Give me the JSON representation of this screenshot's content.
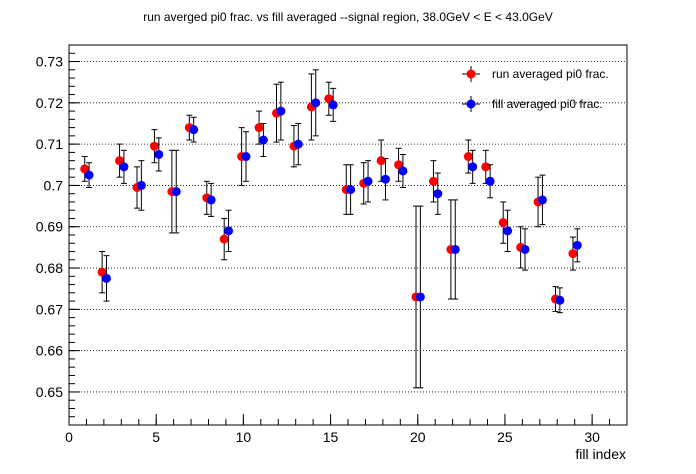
{
  "chart_data": {
    "type": "scatter",
    "title": "run averged pi0 frac. vs fill averaged --signal region, 38.0GeV < E < 43.0GeV",
    "xlabel": "fill index",
    "ylabel": "",
    "xlim": [
      0,
      32
    ],
    "ylim": [
      0.642,
      0.734
    ],
    "x_ticks": [
      0,
      5,
      10,
      15,
      20,
      25,
      30
    ],
    "y_ticks": [
      0.65,
      0.66,
      0.67,
      0.68,
      0.69,
      0.7,
      0.71,
      0.72,
      0.73
    ],
    "x_tick_labels": [
      "0",
      "5",
      "10",
      "15",
      "20",
      "25",
      "30"
    ],
    "y_tick_labels": [
      "0.65",
      "0.66",
      "0.67",
      "0.68",
      "0.69",
      "0.7",
      "0.71",
      "0.72",
      "0.73"
    ],
    "grid": "horizontal dotted",
    "legend_position": "top-right",
    "series": [
      {
        "name": "run averaged pi0 frac.",
        "color": "#ff0000",
        "points": [
          {
            "x": 1,
            "y": 0.704,
            "err": 0.003
          },
          {
            "x": 2,
            "y": 0.679,
            "err": 0.005
          },
          {
            "x": 3,
            "y": 0.706,
            "err": 0.004
          },
          {
            "x": 4,
            "y": 0.6995,
            "err": 0.005
          },
          {
            "x": 5,
            "y": 0.7095,
            "err": 0.004
          },
          {
            "x": 6,
            "y": 0.6985,
            "err": 0.01
          },
          {
            "x": 7,
            "y": 0.714,
            "err": 0.003
          },
          {
            "x": 8,
            "y": 0.697,
            "err": 0.004
          },
          {
            "x": 9,
            "y": 0.687,
            "err": 0.005
          },
          {
            "x": 10,
            "y": 0.707,
            "err": 0.007
          },
          {
            "x": 11,
            "y": 0.714,
            "err": 0.004
          },
          {
            "x": 12,
            "y": 0.7175,
            "err": 0.007
          },
          {
            "x": 13,
            "y": 0.7095,
            "err": 0.005
          },
          {
            "x": 14,
            "y": 0.719,
            "err": 0.008
          },
          {
            "x": 15,
            "y": 0.721,
            "err": 0.004
          },
          {
            "x": 16,
            "y": 0.699,
            "err": 0.006
          },
          {
            "x": 17,
            "y": 0.7005,
            "err": 0.005
          },
          {
            "x": 18,
            "y": 0.706,
            "err": 0.005
          },
          {
            "x": 19,
            "y": 0.705,
            "err": 0.004
          },
          {
            "x": 20,
            "y": 0.673,
            "err": 0.022
          },
          {
            "x": 21,
            "y": 0.701,
            "err": 0.005
          },
          {
            "x": 22,
            "y": 0.6845,
            "err": 0.012
          },
          {
            "x": 23,
            "y": 0.707,
            "err": 0.004
          },
          {
            "x": 24,
            "y": 0.7045,
            "err": 0.004
          },
          {
            "x": 25,
            "y": 0.691,
            "err": 0.005
          },
          {
            "x": 26,
            "y": 0.685,
            "err": 0.005
          },
          {
            "x": 27,
            "y": 0.696,
            "err": 0.006
          },
          {
            "x": 28,
            "y": 0.6725,
            "err": 0.003
          },
          {
            "x": 29,
            "y": 0.6835,
            "err": 0.004
          }
        ]
      },
      {
        "name": "fill averaged pi0 frac.",
        "color": "#0000ff",
        "points": [
          {
            "x": 1,
            "y": 0.7025,
            "err": 0.003
          },
          {
            "x": 2,
            "y": 0.6775,
            "err": 0.0055
          },
          {
            "x": 3,
            "y": 0.7045,
            "err": 0.004
          },
          {
            "x": 4,
            "y": 0.7,
            "err": 0.006
          },
          {
            "x": 5,
            "y": 0.7075,
            "err": 0.004
          },
          {
            "x": 6,
            "y": 0.6985,
            "err": 0.01
          },
          {
            "x": 7,
            "y": 0.7135,
            "err": 0.003
          },
          {
            "x": 8,
            "y": 0.6965,
            "err": 0.004
          },
          {
            "x": 9,
            "y": 0.689,
            "err": 0.005
          },
          {
            "x": 10,
            "y": 0.707,
            "err": 0.006
          },
          {
            "x": 11,
            "y": 0.711,
            "err": 0.004
          },
          {
            "x": 12,
            "y": 0.718,
            "err": 0.007
          },
          {
            "x": 13,
            "y": 0.71,
            "err": 0.005
          },
          {
            "x": 14,
            "y": 0.72,
            "err": 0.008
          },
          {
            "x": 15,
            "y": 0.7195,
            "err": 0.004
          },
          {
            "x": 16,
            "y": 0.699,
            "err": 0.006
          },
          {
            "x": 17,
            "y": 0.701,
            "err": 0.005
          },
          {
            "x": 18,
            "y": 0.7015,
            "err": 0.005
          },
          {
            "x": 19,
            "y": 0.7035,
            "err": 0.004
          },
          {
            "x": 20,
            "y": 0.673,
            "err": 0.022
          },
          {
            "x": 21,
            "y": 0.698,
            "err": 0.005
          },
          {
            "x": 22,
            "y": 0.6845,
            "err": 0.012
          },
          {
            "x": 23,
            "y": 0.7045,
            "err": 0.004
          },
          {
            "x": 24,
            "y": 0.701,
            "err": 0.004
          },
          {
            "x": 25,
            "y": 0.689,
            "err": 0.005
          },
          {
            "x": 26,
            "y": 0.6845,
            "err": 0.005
          },
          {
            "x": 27,
            "y": 0.6965,
            "err": 0.006
          },
          {
            "x": 28,
            "y": 0.6722,
            "err": 0.003
          },
          {
            "x": 29,
            "y": 0.6855,
            "err": 0.004
          }
        ]
      }
    ]
  }
}
